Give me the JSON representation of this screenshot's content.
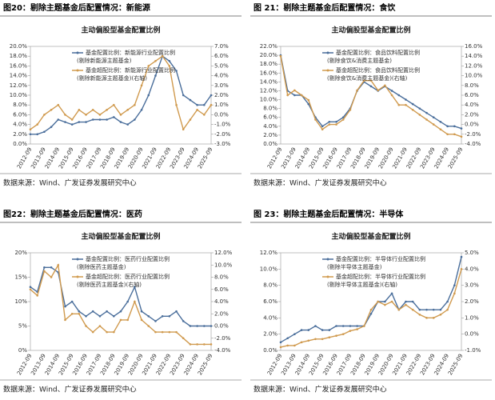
{
  "chart_data": [
    {
      "type": "line",
      "heading": "图20：剔除主题基金后配置情况：新能源",
      "title": "主动偏股型基金配置比例",
      "source": "数据来源：Wind、广发证券发展研究中心",
      "categories": [
        "2012-09",
        null,
        "2013-09",
        null,
        "2014-09",
        null,
        "2015-09",
        null,
        "2016-09",
        null,
        "2017-09",
        null,
        "2018-09",
        null,
        "2019-09",
        null,
        "2020-09",
        null,
        "2021-09",
        null,
        "2022-09",
        null,
        "2023-09",
        null,
        "2024-09",
        null,
        "2025-09"
      ],
      "series": [
        {
          "name": [
            "基金配置比例：新能源行业配置比例",
            "(剔除新能源主题基金)"
          ],
          "color": "#4a6e9b",
          "values": [
            2,
            2,
            2.5,
            3.5,
            5,
            4.5,
            4,
            4.5,
            4.5,
            5,
            5,
            5,
            5.5,
            4.5,
            4,
            5,
            7,
            10,
            14,
            18,
            17,
            15,
            10,
            9,
            8,
            8,
            10
          ]
        },
        {
          "name": [
            "基金超配比例：新能源行业配置比例",
            "(剔除新能源主题基金)(右轴)"
          ],
          "color": "#d09a4e",
          "axis": "y2",
          "values": [
            -1.5,
            -1,
            0,
            0.5,
            1,
            0,
            -0.5,
            0.5,
            0,
            0.5,
            0,
            0.5,
            1,
            0,
            0.5,
            1,
            3,
            5,
            5.5,
            6,
            5,
            1,
            -1.5,
            -0.5,
            0.5,
            0,
            1
          ]
        }
      ],
      "ylim": [
        0,
        20
      ],
      "yticks": [
        {
          "value": 0,
          "label": "0.0%"
        },
        {
          "value": 2,
          "label": "2.0%"
        },
        {
          "value": 4,
          "label": "4.0%"
        },
        {
          "value": 6,
          "label": "6.0%"
        },
        {
          "value": 8,
          "label": "8.0%"
        },
        {
          "value": 10,
          "label": "10.0%"
        },
        {
          "value": 12,
          "label": "12.0%"
        },
        {
          "value": 14,
          "label": "14.0%"
        },
        {
          "value": 16,
          "label": "16.0%"
        },
        {
          "value": 18,
          "label": "18.0%"
        },
        {
          "value": 20,
          "label": "20.0%"
        }
      ],
      "y2lim": [
        -3,
        7
      ],
      "y2ticks": [
        {
          "value": -3,
          "label": "-3.0%"
        },
        {
          "value": -2,
          "label": "-2.0%"
        },
        {
          "value": -1,
          "label": "-1.0%"
        },
        {
          "value": 0,
          "label": "0.0%"
        },
        {
          "value": 1,
          "label": "1.0%"
        },
        {
          "value": 2,
          "label": "2.0%"
        },
        {
          "value": 3,
          "label": "3.0%"
        },
        {
          "value": 4,
          "label": "4.0%"
        },
        {
          "value": 5,
          "label": "5.0%"
        },
        {
          "value": 6,
          "label": "6.0%"
        },
        {
          "value": 7,
          "label": "7.0%"
        }
      ]
    },
    {
      "type": "line",
      "heading": "图 21：剔除主题基金后配置情况：食饮",
      "title": "主动偏股型基金配置比例",
      "source": "数据来源：Wind、广发证券发展研究中心",
      "categories": [
        "2012-09",
        null,
        "2013-09",
        null,
        "2014-09",
        null,
        "2015-09",
        null,
        "2016-09",
        null,
        "2017-09",
        null,
        "2018-09",
        null,
        "2019-09",
        null,
        "2020-09",
        null,
        "2021-09",
        null,
        "2022-09",
        null,
        "2023-09",
        null,
        "2024-09",
        null,
        "2025-09"
      ],
      "series": [
        {
          "name": [
            "基金配置比例：食品饮料配置比例",
            "(剔除食饮&消费主题基金)"
          ],
          "color": "#4a6e9b",
          "values": [
            20,
            12,
            11,
            11,
            9,
            6,
            4,
            5,
            5,
            6,
            8,
            12,
            14,
            13,
            12,
            13,
            12,
            11,
            10,
            9,
            8,
            7,
            6,
            5,
            4,
            4,
            3.5
          ]
        },
        {
          "name": [
            "基金超配比例：食品饮料配置比例",
            "(剔除食饮&消费主题基金)(右轴)"
          ],
          "color": "#d09a4e",
          "axis": "y2",
          "values": [
            14,
            6,
            7,
            6,
            5,
            1,
            -1,
            0,
            0,
            1,
            3,
            7,
            9,
            9,
            7,
            8,
            6,
            4,
            4,
            3,
            2,
            1,
            0,
            -1,
            -2,
            -2,
            -2.5
          ]
        }
      ],
      "ylim": [
        0,
        22
      ],
      "yticks": [
        {
          "value": 0,
          "label": "0.0%"
        },
        {
          "value": 2,
          "label": "2.0%"
        },
        {
          "value": 4,
          "label": "4.0%"
        },
        {
          "value": 6,
          "label": "6.0%"
        },
        {
          "value": 8,
          "label": "8.0%"
        },
        {
          "value": 10,
          "label": "10.0%"
        },
        {
          "value": 12,
          "label": "12.0%"
        },
        {
          "value": 14,
          "label": "14.0%"
        },
        {
          "value": 16,
          "label": "16.0%"
        },
        {
          "value": 18,
          "label": "18.0%"
        },
        {
          "value": 20,
          "label": "20.0%"
        },
        {
          "value": 22,
          "label": "22.0%"
        }
      ],
      "y2lim": [
        -4,
        16
      ],
      "y2ticks": [
        {
          "value": -4,
          "label": "-4.0%"
        },
        {
          "value": -2,
          "label": "-2.0%"
        },
        {
          "value": 0,
          "label": "0.0%"
        },
        {
          "value": 2,
          "label": "2.0%"
        },
        {
          "value": 4,
          "label": "4.0%"
        },
        {
          "value": 6,
          "label": "6.0%"
        },
        {
          "value": 8,
          "label": "8.0%"
        },
        {
          "value": 10,
          "label": "10.0%"
        },
        {
          "value": 12,
          "label": "12.0%"
        },
        {
          "value": 14,
          "label": "14.0%"
        },
        {
          "value": 16,
          "label": "16.0%"
        }
      ]
    },
    {
      "type": "line",
      "heading": "图22：剔除主题基金后配置情况：医药",
      "title": "主动偏股型基金配置比例",
      "source": "数据来源：Wind、广发证券发展研究中心",
      "categories": [
        "2012-09",
        null,
        "2013-09",
        null,
        "2014-09",
        null,
        "2015-09",
        null,
        "2016-09",
        null,
        "2017-09",
        null,
        "2018-09",
        null,
        "2019-09",
        null,
        "2020-09",
        null,
        "2021-09",
        null,
        "2022-09",
        null,
        "2023-09",
        null,
        "2024-09",
        null,
        "2025-09"
      ],
      "series": [
        {
          "name": [
            "基金配置比例：医药行业配置比例",
            "(剔除医药主题基金)"
          ],
          "color": "#4a6e9b",
          "values": [
            13,
            12,
            17,
            17,
            16,
            9,
            10,
            8,
            7,
            8,
            7,
            8,
            7,
            8,
            10,
            13,
            8,
            7,
            6,
            7,
            7,
            8,
            6,
            5,
            5,
            5,
            5
          ]
        },
        {
          "name": [
            "基金超配比例：医药行业配置比例",
            "(剔除医药主题基金)(右轴)"
          ],
          "color": "#d09a4e",
          "axis": "y2",
          "values": [
            6,
            5,
            9,
            8,
            10,
            1,
            2,
            2,
            0,
            -1,
            0,
            -1,
            -1,
            1,
            1,
            4,
            1,
            0,
            -1,
            -1,
            -1,
            -1,
            -2,
            -3,
            -3,
            -3,
            -3
          ]
        }
      ],
      "ylim": [
        0,
        20
      ],
      "yticks": [
        {
          "value": 0,
          "label": "0%"
        },
        {
          "value": 5,
          "label": "5%"
        },
        {
          "value": 10,
          "label": "10%"
        },
        {
          "value": 15,
          "label": "15%"
        },
        {
          "value": 20,
          "label": "20%"
        }
      ],
      "y2lim": [
        -4,
        12
      ],
      "y2ticks": [
        {
          "value": -4,
          "label": "-4.0%"
        },
        {
          "value": -2,
          "label": "-2.0%"
        },
        {
          "value": 0,
          "label": "0.0%"
        },
        {
          "value": 2,
          "label": "2.0%"
        },
        {
          "value": 4,
          "label": "4.0%"
        },
        {
          "value": 6,
          "label": "6.0%"
        },
        {
          "value": 8,
          "label": "8.0%"
        },
        {
          "value": 10,
          "label": "10.0%"
        },
        {
          "value": 12,
          "label": "12.0%"
        }
      ]
    },
    {
      "type": "line",
      "heading": "图 23：剔除主题基金后配置情况：半导体",
      "title": "主动偏股型基金配置比例",
      "source": "数据来源：Wind、广发证券发展研究中心",
      "categories": [
        "2012-09",
        null,
        "2013-09",
        null,
        "2014-09",
        null,
        "2015-09",
        null,
        "2016-09",
        null,
        "2017-09",
        null,
        "2018-09",
        null,
        "2019-09",
        null,
        "2020-09",
        null,
        "2021-09",
        null,
        "2022-09",
        null,
        "2023-09",
        null,
        "2024-09",
        null,
        "2025-09"
      ],
      "series": [
        {
          "name": [
            "基金配置比例：半导体行业配置比例",
            "(剔除半导体主题基金)"
          ],
          "color": "#4a6e9b",
          "values": [
            1,
            1.5,
            2,
            2.5,
            2.5,
            3,
            2.5,
            2.5,
            3,
            3,
            3,
            3,
            3,
            4.5,
            6,
            6,
            7,
            5,
            6,
            6,
            5,
            5,
            5,
            5,
            6,
            8,
            11.5
          ]
        },
        {
          "name": [
            "基金超配比例：半导体行业配置比例",
            "(剔除半导体主题基金)(右轴)"
          ],
          "color": "#d09a4e",
          "axis": "y2",
          "values": [
            -0.8,
            -0.7,
            -0.7,
            -0.5,
            -0.4,
            -0.3,
            -0.3,
            -0.2,
            -0.1,
            0,
            0.2,
            0.3,
            0.5,
            1.5,
            2,
            1.8,
            2,
            1.5,
            1.8,
            1.5,
            1.2,
            1,
            1,
            1.2,
            1.5,
            2.5,
            4
          ]
        }
      ],
      "ylim": [
        0,
        12
      ],
      "yticks": [
        {
          "value": 0,
          "label": "0.0%"
        },
        {
          "value": 2,
          "label": "2.0%"
        },
        {
          "value": 4,
          "label": "4.0%"
        },
        {
          "value": 6,
          "label": "6.0%"
        },
        {
          "value": 8,
          "label": "8.0%"
        },
        {
          "value": 10,
          "label": "10.0%"
        },
        {
          "value": 12,
          "label": "12.0%"
        }
      ],
      "y2lim": [
        -1,
        5
      ],
      "y2ticks": [
        {
          "value": -1,
          "label": "-1.0%"
        },
        {
          "value": 0,
          "label": "0.0%"
        },
        {
          "value": 1,
          "label": "1.0%"
        },
        {
          "value": 2,
          "label": "2.0%"
        },
        {
          "value": 3,
          "label": "3.0%"
        },
        {
          "value": 4,
          "label": "4.0%"
        },
        {
          "value": 5,
          "label": "5.0%"
        }
      ]
    }
  ]
}
